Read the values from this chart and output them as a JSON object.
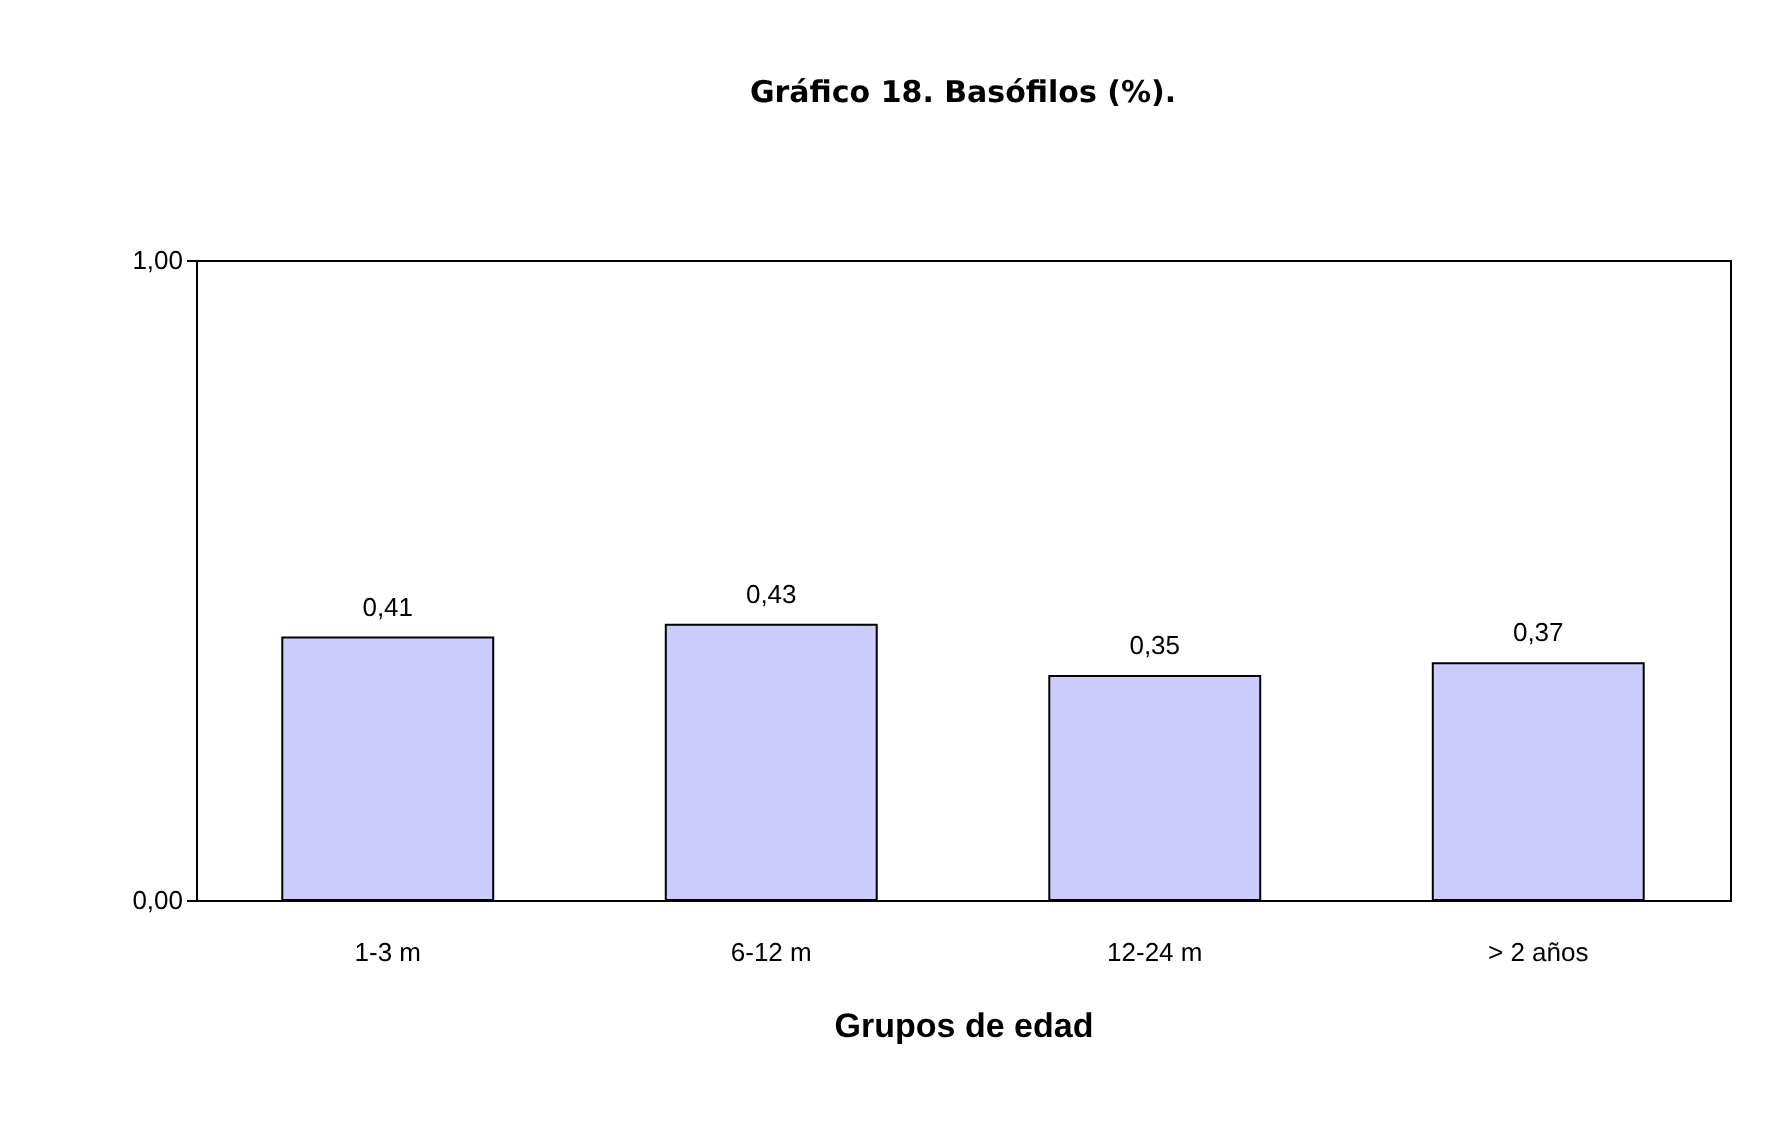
{
  "chart_data": {
    "type": "bar",
    "title": "Gráfico 18. Basófilos (%).",
    "xlabel": "Grupos de edad",
    "categories": [
      "1-3 m",
      "6-12 m",
      "12-24 m",
      "> 2 años"
    ],
    "values": [
      0.41,
      0.43,
      0.35,
      0.37
    ],
    "value_labels": [
      "0,41",
      "0,43",
      "0,35",
      "0,37"
    ],
    "color": "#ccccff",
    "ylim": [
      0,
      1
    ],
    "yticks": [
      {
        "value": 0,
        "label": "0,00"
      },
      {
        "value": 1,
        "label": "1,00"
      }
    ],
    "grid": false
  }
}
